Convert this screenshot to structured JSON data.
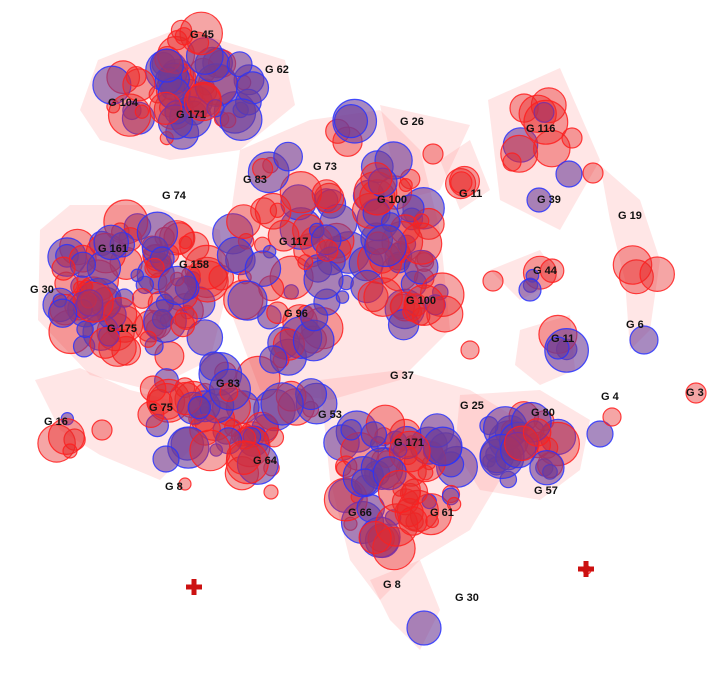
{
  "diagram": {
    "type": "cluster-bubble-map",
    "colors": {
      "red_group": "#e62828",
      "blue_group": "#3c3cff",
      "hull": "#ff8c8c",
      "marker": "#cc1111"
    },
    "markers": [
      "plus-marker",
      "plus-marker"
    ],
    "groups": [
      {
        "label": "G 45"
      },
      {
        "label": "G 62"
      },
      {
        "label": "G 104"
      },
      {
        "label": "G 171"
      },
      {
        "label": "G 26"
      },
      {
        "label": "G 116"
      },
      {
        "label": "G 73"
      },
      {
        "label": "G 83"
      },
      {
        "label": "G 74"
      },
      {
        "label": "G 100"
      },
      {
        "label": "G 11"
      },
      {
        "label": "G 39"
      },
      {
        "label": "G 19"
      },
      {
        "label": "G 161"
      },
      {
        "label": "G 117"
      },
      {
        "label": "G 158"
      },
      {
        "label": "G 30"
      },
      {
        "label": "G 44"
      },
      {
        "label": "G 100"
      },
      {
        "label": "G 96"
      },
      {
        "label": "G 6"
      },
      {
        "label": "G 175"
      },
      {
        "label": "G 11"
      },
      {
        "label": "G 37"
      },
      {
        "label": "G 83"
      },
      {
        "label": "G 3"
      },
      {
        "label": "G 4"
      },
      {
        "label": "G 75"
      },
      {
        "label": "G 25"
      },
      {
        "label": "G 80"
      },
      {
        "label": "G 53"
      },
      {
        "label": "G 16"
      },
      {
        "label": "G 171"
      },
      {
        "label": "G 64"
      },
      {
        "label": "G 8"
      },
      {
        "label": "G 57"
      },
      {
        "label": "G 66"
      },
      {
        "label": "G 61"
      },
      {
        "label": "G 8"
      },
      {
        "label": "G 30"
      }
    ]
  }
}
